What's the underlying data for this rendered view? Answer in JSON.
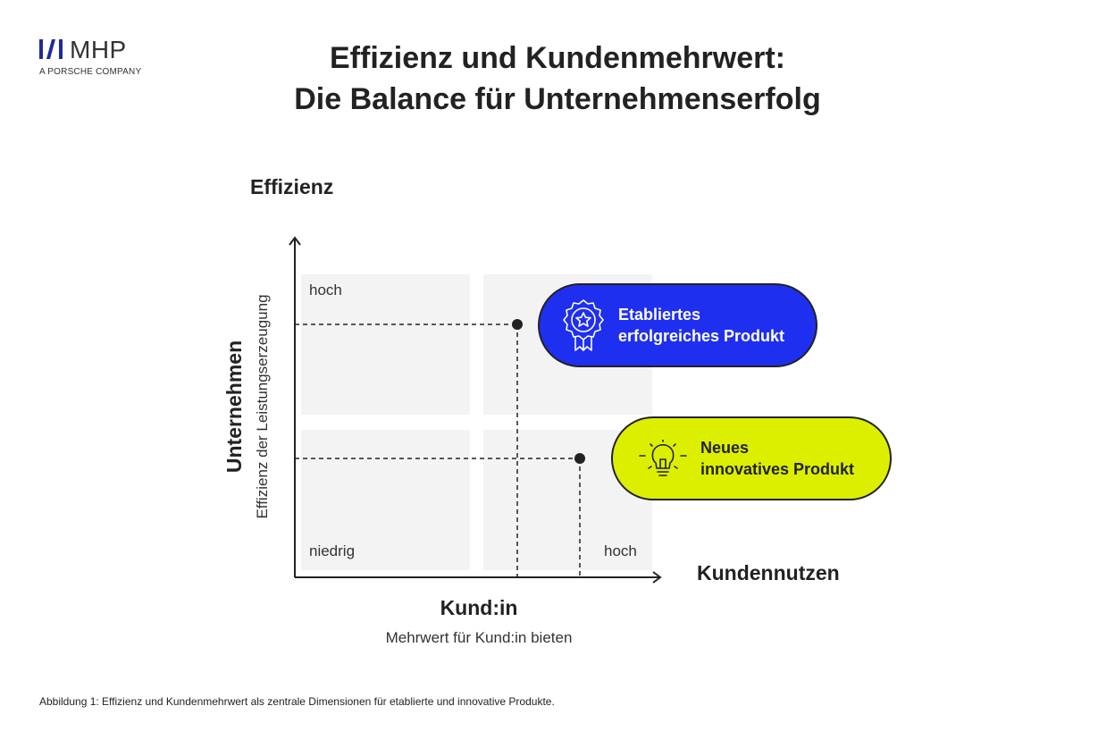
{
  "logo": {
    "name": "MHP",
    "subtitle": "A PORSCHE COMPANY",
    "color": "#1f2a9e"
  },
  "title": {
    "line1": "Effizienz und Kundenmehrwert:",
    "line2": "Die Balance für Unternehmenserfolg"
  },
  "y_axis": {
    "top_label": "Effizienz",
    "label": "Unternehmen",
    "sublabel": "Effizienz der Leistungserzeugung"
  },
  "x_axis": {
    "right_label": "Kundennutzen",
    "label": "Kund:in",
    "sublabel": "Mehrwert für Kund:in bieten"
  },
  "quadrant_labels": {
    "top_left": "hoch",
    "bottom_left": "niedrig",
    "bottom_right": "hoch"
  },
  "points": [
    {
      "label_line1": "Etabliertes",
      "label_line2": "erfolgreiches Produkt",
      "icon": "award-star-icon",
      "color": "#1f2ff0"
    },
    {
      "label_line1": "Neues",
      "label_line2": "innovatives Produkt",
      "icon": "lightbulb-icon",
      "color": "#dcef00"
    }
  ],
  "colors": {
    "quadrant_fill": "#f3f3f3",
    "axis": "#222222",
    "blue": "#1f2ff0",
    "yellow": "#dcef00"
  },
  "caption": "Abbildung 1:  Effizienz und Kundenmehrwert als zentrale Dimensionen für etablierte und innovative Produkte."
}
